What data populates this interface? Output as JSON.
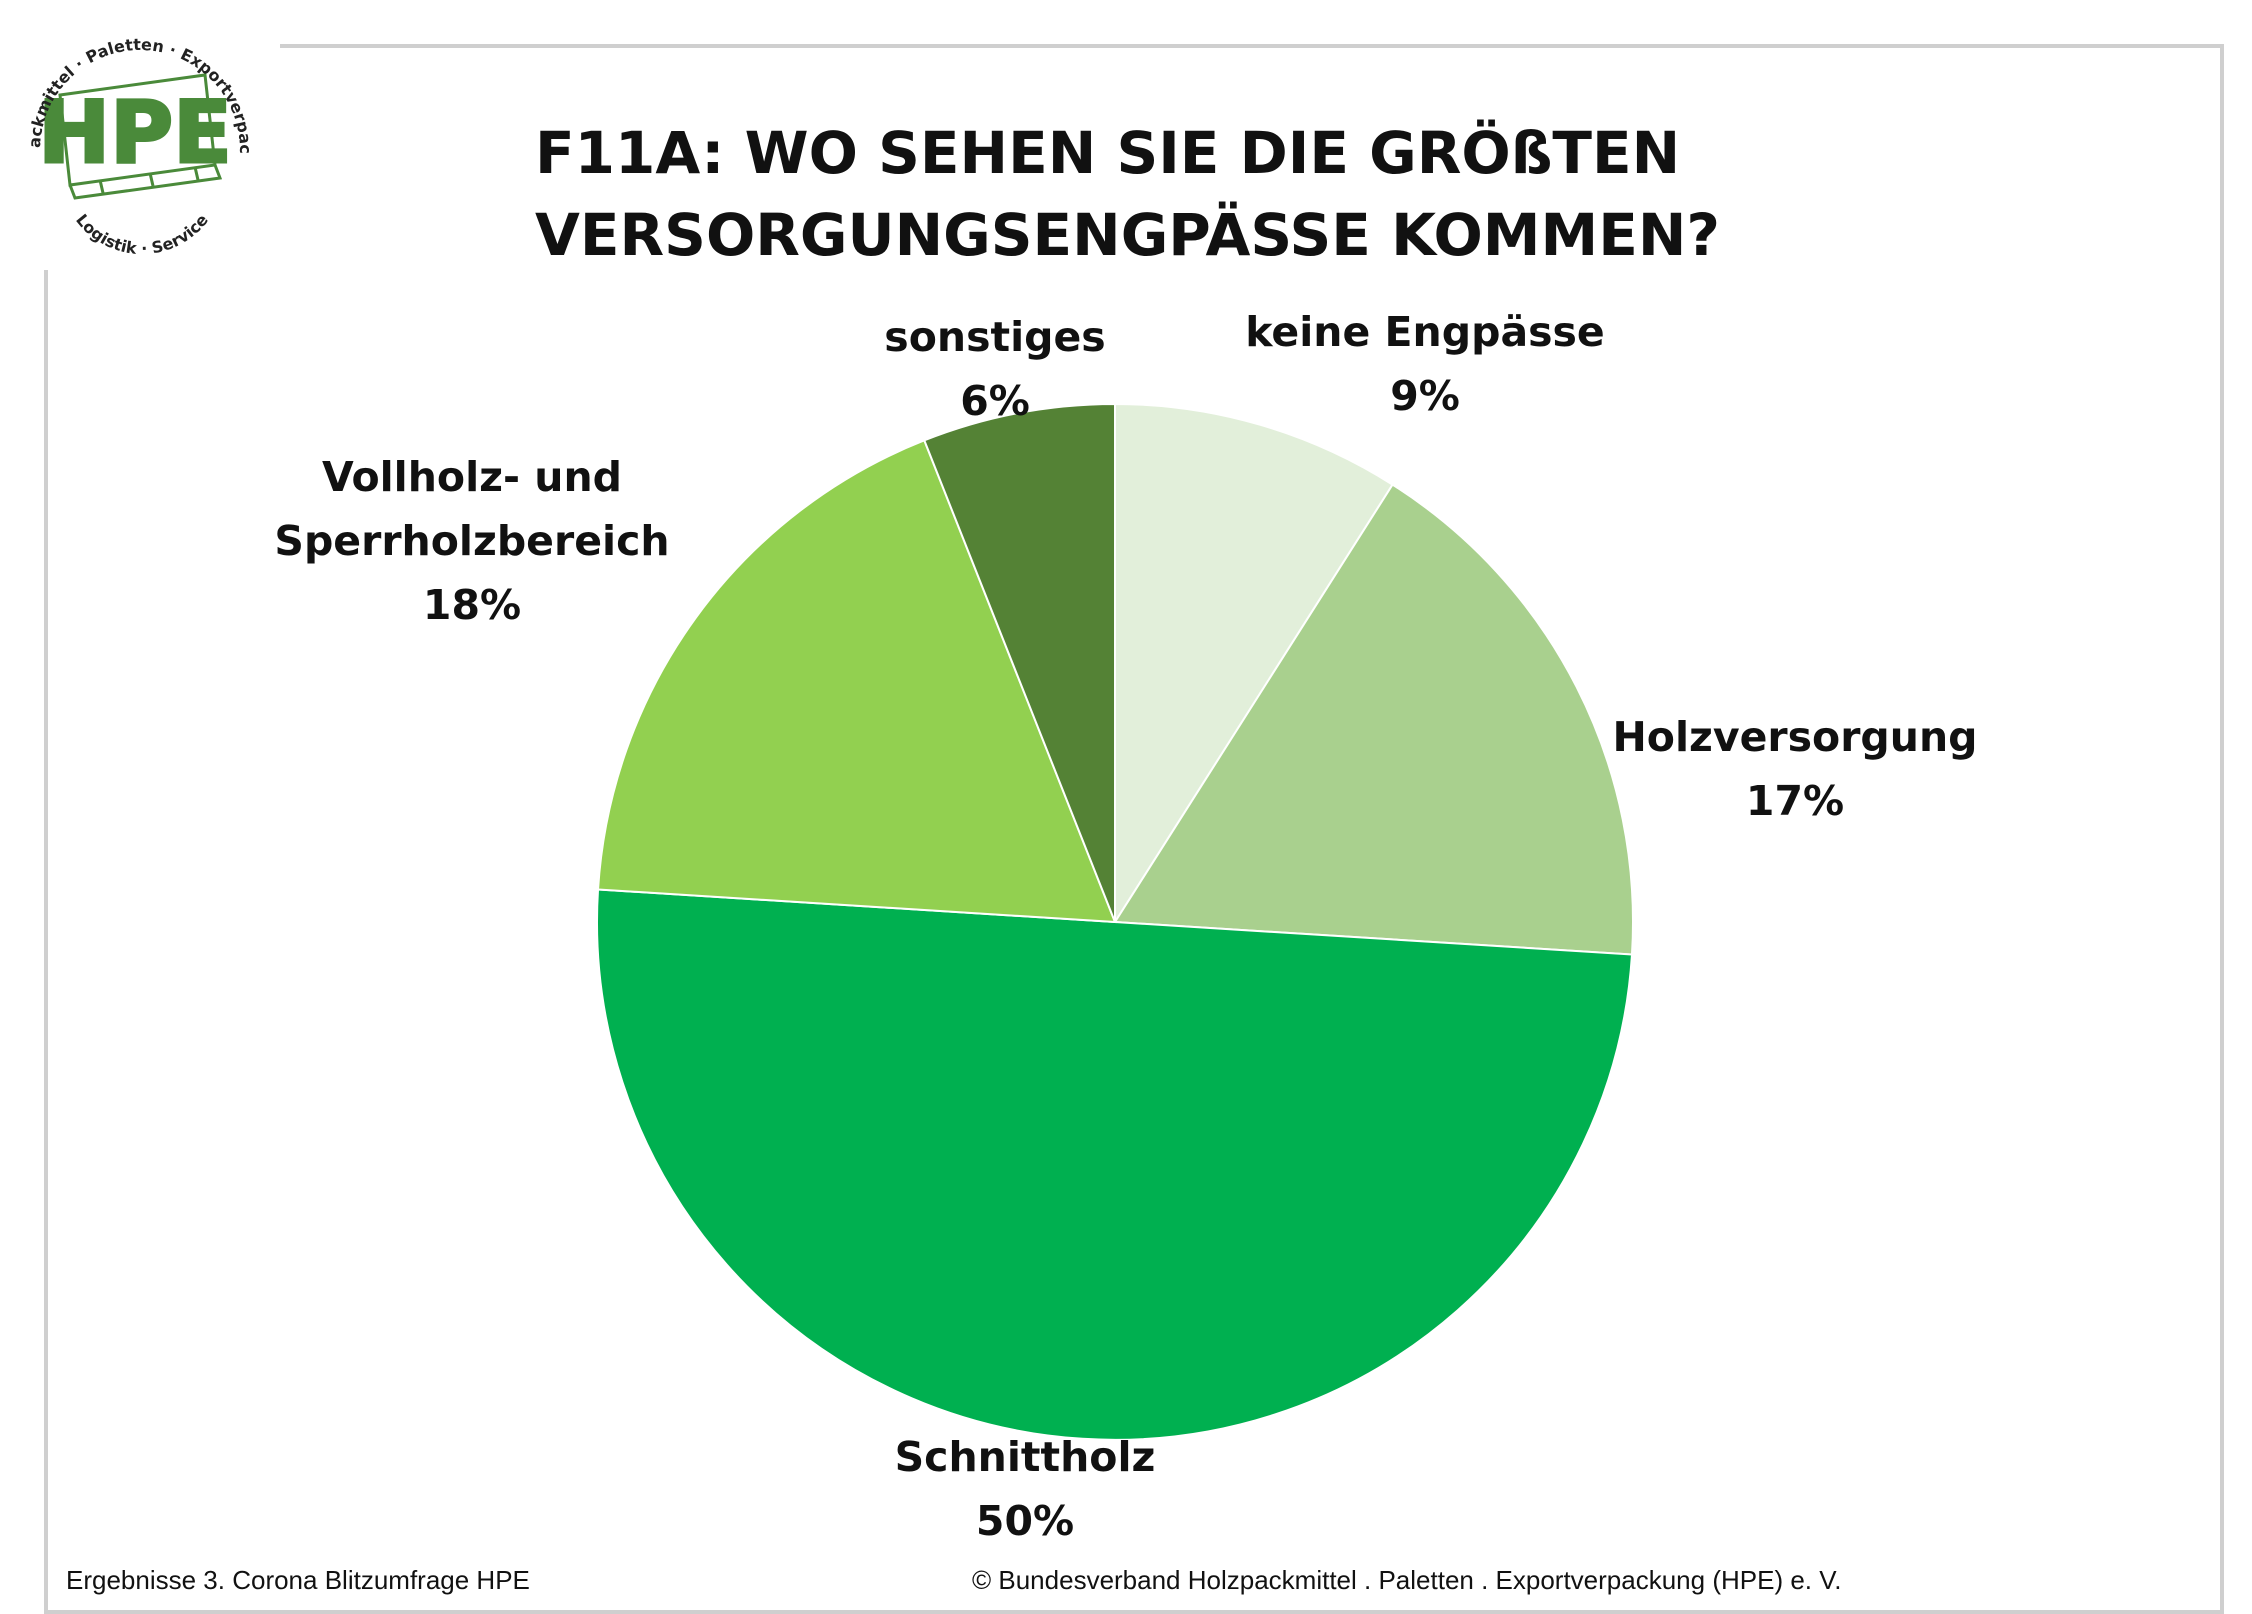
{
  "logo": {
    "text": "HPE",
    "top_arc": "Holzpackmittel · Paletten · Exportverpackung",
    "bottom_arc": "Logistik · Service",
    "color": "#4a8a3a"
  },
  "chart_data": {
    "type": "pie",
    "title": [
      "F11A: WO SEHEN SIE DIE GRÖßTEN",
      "VERSORGUNGSENGPÄSSE KOMMEN?"
    ],
    "slices": [
      {
        "label": [
          "keine Engpässe"
        ],
        "value": 9,
        "value_label": "9%",
        "color": "#e2efda"
      },
      {
        "label": [
          "Holzversorgung"
        ],
        "value": 17,
        "value_label": "17%",
        "color": "#a9d08e"
      },
      {
        "label": [
          "Schnittholz"
        ],
        "value": 50,
        "value_label": "50%",
        "color": "#00b050"
      },
      {
        "label": [
          "Vollholz- und",
          "Sperrholzbereich"
        ],
        "value": 18,
        "value_label": "18%",
        "color": "#92d050"
      },
      {
        "label": [
          "sonstiges"
        ],
        "value": 6,
        "value_label": "6%",
        "color": "#548235"
      }
    ],
    "start": "top",
    "direction": "clockwise"
  },
  "footer": {
    "left": "Ergebnisse 3. Corona Blitzumfrage HPE",
    "right": "© Bundesverband Holzpackmittel . Paletten . Exportverpackung (HPE) e. V."
  }
}
